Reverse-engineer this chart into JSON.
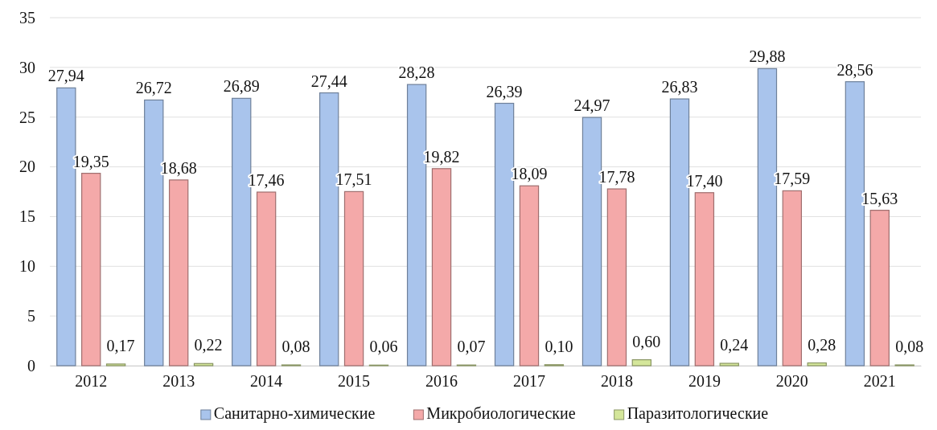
{
  "chart_data": {
    "type": "bar",
    "categories": [
      "2012",
      "2013",
      "2014",
      "2015",
      "2016",
      "2017",
      "2018",
      "2019",
      "2020",
      "2021"
    ],
    "series": [
      {
        "name": "Санитарно-химические",
        "color": "#a9c4ec",
        "values": [
          27.94,
          26.72,
          26.89,
          27.44,
          28.28,
          26.39,
          24.97,
          26.83,
          29.88,
          28.56
        ],
        "value_labels": [
          "27,94",
          "26,72",
          "26,89",
          "27,44",
          "28,28",
          "26,39",
          "24,97",
          "26,83",
          "29,88",
          "28,56"
        ]
      },
      {
        "name": "Микробиологические",
        "color": "#f4a9a9",
        "values": [
          19.35,
          18.68,
          17.46,
          17.51,
          19.82,
          18.09,
          17.78,
          17.4,
          17.59,
          15.63
        ],
        "value_labels": [
          "19,35",
          "18,68",
          "17,46",
          "17,51",
          "19,82",
          "18,09",
          "17,78",
          "17,40",
          "17,59",
          "15,63"
        ]
      },
      {
        "name": "Паразитологические",
        "color": "#d4e69a",
        "values": [
          0.17,
          0.22,
          0.08,
          0.06,
          0.07,
          0.1,
          0.6,
          0.24,
          0.28,
          0.08
        ],
        "value_labels": [
          "0,17",
          "0,22",
          "0,08",
          "0,06",
          "0,07",
          "0,10",
          "0,60",
          "0,24",
          "0,28",
          "0,08"
        ]
      }
    ],
    "ylim": [
      0,
      35
    ],
    "yticks": [
      0,
      5,
      10,
      15,
      20,
      25,
      30,
      35
    ],
    "grid": "y",
    "legend": "bottom"
  }
}
